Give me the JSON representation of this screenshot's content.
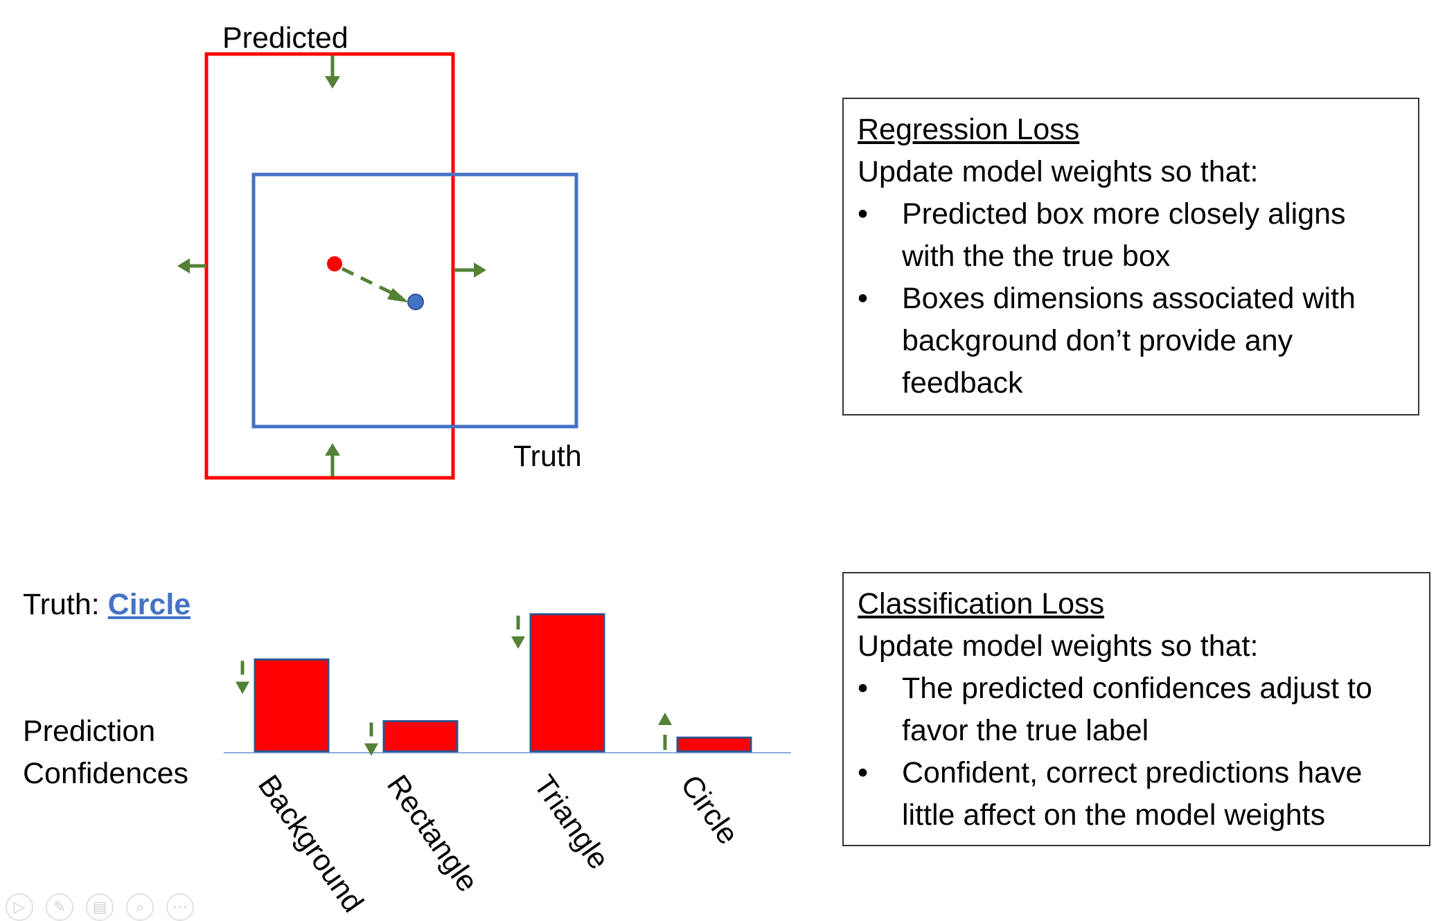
{
  "top_diagram": {
    "predicted_label": "Predicted",
    "truth_label": "Truth",
    "colors": {
      "predicted": "#ff0000",
      "truth": "#4472c4",
      "arrow": "#538135"
    }
  },
  "regression_box": {
    "heading": "Regression Loss",
    "intro": "Update model weights so that:",
    "bullets": [
      "Predicted box more closely aligns with the the true box",
      "Boxes dimensions associated with background don’t provide any feedback"
    ]
  },
  "classification_box": {
    "heading": "Classification Loss",
    "intro": "Update model weights so that:",
    "bullets": [
      "The predicted confidences adjust to favor the true label",
      "Confident, correct predictions have little affect on the model weights"
    ]
  },
  "truth_line": {
    "prefix": "Truth: ",
    "value": "Circle"
  },
  "prediction_label": {
    "line1": "Prediction",
    "line2": "Confidences"
  },
  "chart_data": {
    "type": "bar",
    "categories": [
      "Background",
      "Rectangle",
      "Triangle",
      "Circle"
    ],
    "values": [
      0.67,
      0.22,
      1.0,
      0.1
    ],
    "adjust_direction": [
      "down",
      "down",
      "down",
      "up"
    ],
    "bar_color": "#ff0000",
    "title": "",
    "xlabel": "",
    "ylabel": ""
  },
  "bullet_char": "•",
  "toolbar_icons": [
    "play-icon",
    "pen-icon",
    "slides-icon",
    "zoom-icon",
    "more-icon"
  ]
}
